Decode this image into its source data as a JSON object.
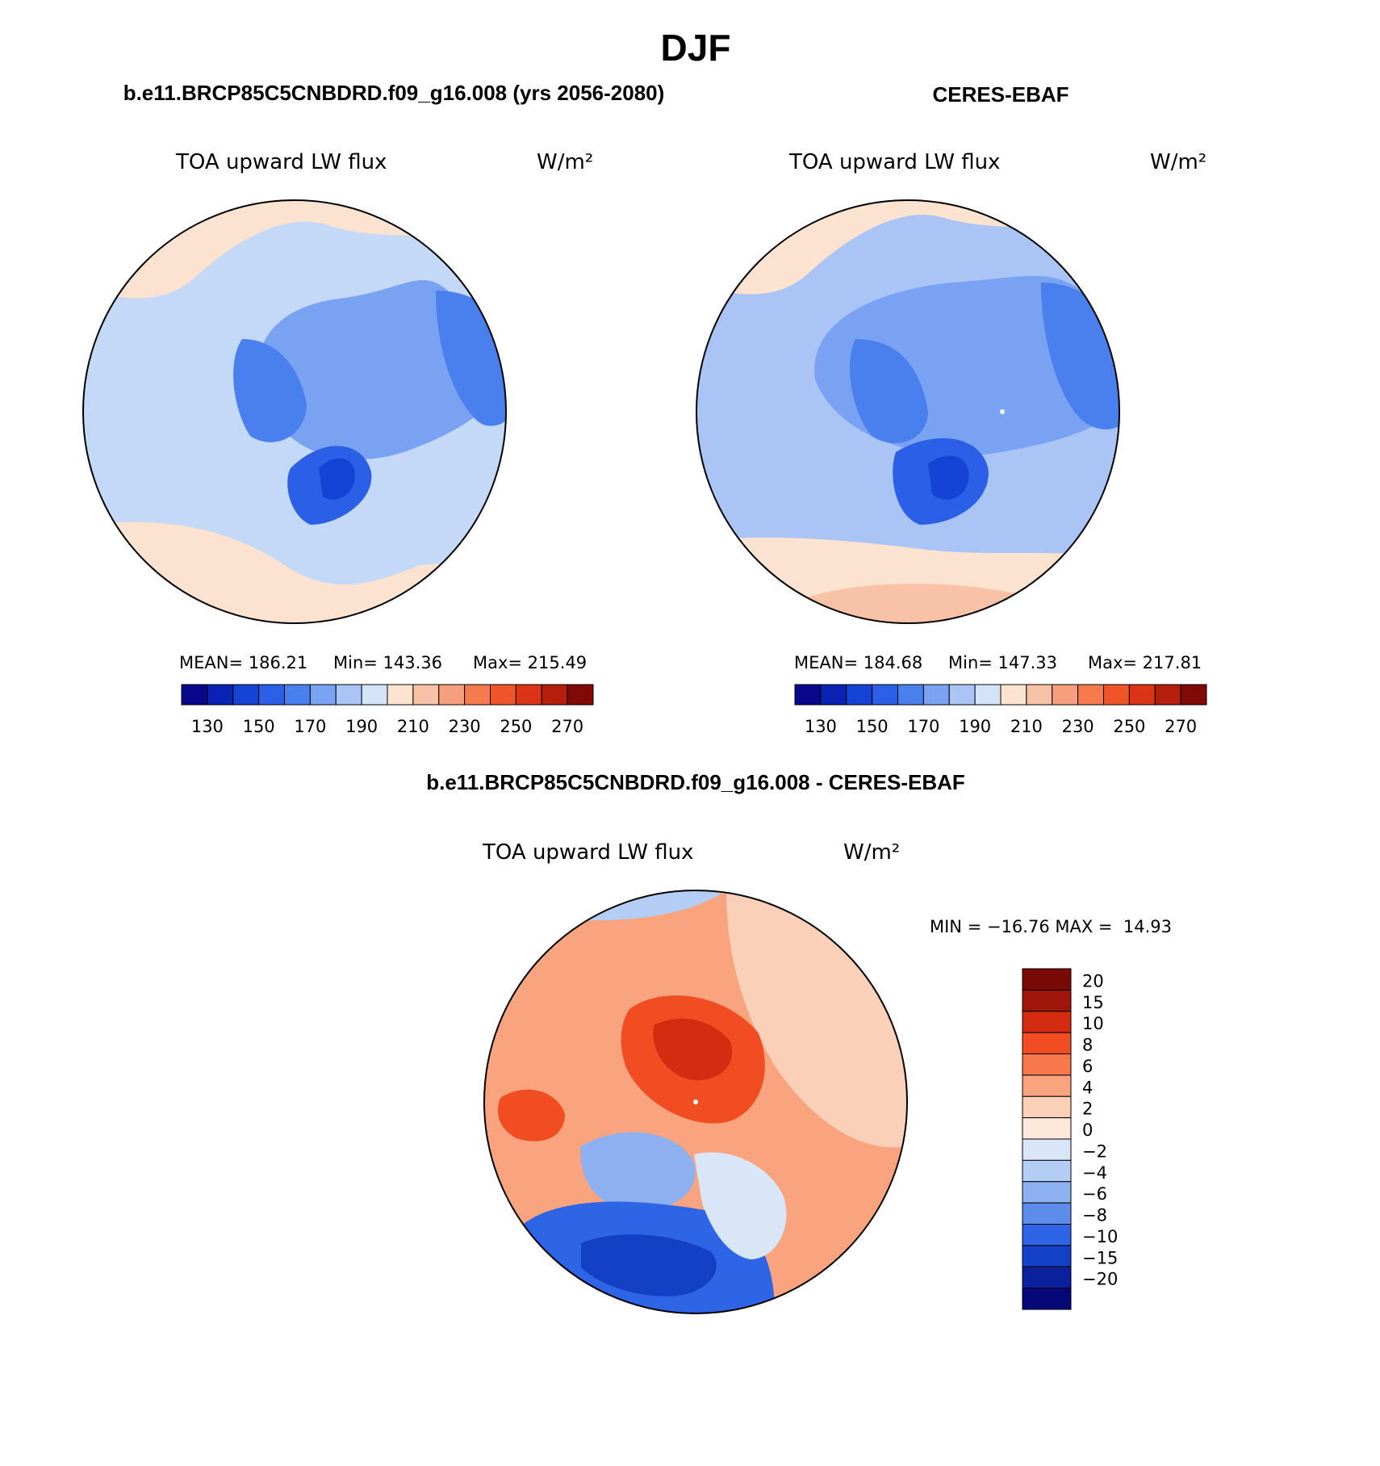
{
  "chart_data": {
    "title": "DJF",
    "panels": [
      {
        "type": "heatmap",
        "projection": "north-polar-stereographic",
        "title": "b.e11.BRCP85C5CNBDRD.f09_g16.008 (yrs 2056-2080)",
        "variable": "TOA upward LW flux",
        "units": "W/m²",
        "stats": {
          "mean": "MEAN= 186.21",
          "min": "Min= 143.36",
          "max": "Max= 215.49"
        },
        "colorbar_ticks": [
          "130",
          "150",
          "170",
          "190",
          "210",
          "230",
          "250",
          "270"
        ],
        "colorbar_levels": [
          130,
          140,
          150,
          160,
          170,
          180,
          190,
          200,
          210,
          220,
          230,
          240,
          250,
          260,
          270
        ]
      },
      {
        "type": "heatmap",
        "projection": "north-polar-stereographic",
        "title": "CERES-EBAF",
        "variable": "TOA upward LW flux",
        "units": "W/m²",
        "stats": {
          "mean": "MEAN= 184.68",
          "min": "Min= 147.33",
          "max": "Max= 217.81"
        },
        "colorbar_ticks": [
          "130",
          "150",
          "170",
          "190",
          "210",
          "230",
          "250",
          "270"
        ],
        "colorbar_levels": [
          130,
          140,
          150,
          160,
          170,
          180,
          190,
          200,
          210,
          220,
          230,
          240,
          250,
          260,
          270
        ]
      },
      {
        "type": "heatmap",
        "projection": "north-polar-stereographic",
        "title": "b.e11.BRCP85C5CNBDRD.f09_g16.008 - CERES-EBAF",
        "variable": "TOA upward LW flux",
        "units": "W/m²",
        "stats_text": "MIN = −16.76 MAX =  14.93",
        "colorbar_ticks": [
          "20",
          "15",
          "10",
          "8",
          "6",
          "4",
          "2",
          "0",
          "−2",
          "−4",
          "−6",
          "−8",
          "−10",
          "−15",
          "−20"
        ],
        "colorbar_levels": [
          20,
          15,
          10,
          8,
          6,
          4,
          2,
          0,
          -2,
          -4,
          -6,
          -8,
          -10,
          -15,
          -20
        ]
      }
    ],
    "colors": {
      "abs_scale": [
        "#08088c",
        "#0a23b4",
        "#1443d6",
        "#2a5fe6",
        "#4a7fee",
        "#7aa2f2",
        "#a9c4f5",
        "#d4e4f8",
        "#fbe3d0",
        "#f8c2a6",
        "#f79f7c",
        "#f57a4e",
        "#f0542a",
        "#dc3416",
        "#b41e0c",
        "#820a06"
      ],
      "diff_scale": [
        "#7a0a06",
        "#a0160a",
        "#d42c10",
        "#f04e22",
        "#f6784c",
        "#f9a47e",
        "#fad0b8",
        "#fde8da",
        "#d8e6f8",
        "#b4cdf4",
        "#8cb0f0",
        "#5e8cec",
        "#2e64e6",
        "#1440c8",
        "#0a209c",
        "#06087a"
      ]
    }
  }
}
